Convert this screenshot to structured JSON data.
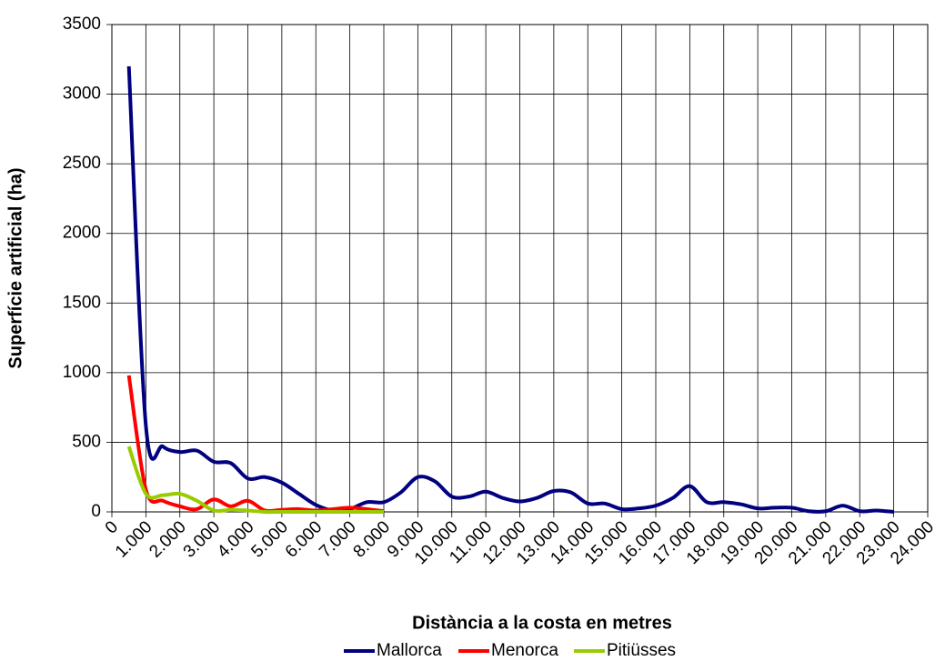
{
  "chart_data": {
    "type": "line",
    "x_label": "Distància a la costa en metres",
    "y_label": "Superfície artificial (ha)",
    "x": [
      500,
      1000,
      1500,
      2000,
      2500,
      3000,
      3500,
      4000,
      4500,
      5000,
      5500,
      6000,
      6500,
      7000,
      7500,
      8000,
      8500,
      9000,
      9500,
      10000,
      10500,
      11000,
      11500,
      12000,
      12500,
      13000,
      13500,
      14000,
      14500,
      15000,
      15500,
      16000,
      16500,
      17000,
      17500,
      18000,
      18500,
      19000,
      19500,
      20000,
      20500,
      21000,
      21500,
      22000,
      22500,
      23000
    ],
    "series": [
      {
        "name": "Mallorca",
        "color": "#000080",
        "values": [
          3200,
          620,
          470,
          430,
          440,
          360,
          350,
          240,
          250,
          210,
          130,
          50,
          10,
          20,
          70,
          70,
          140,
          250,
          220,
          110,
          110,
          145,
          100,
          75,
          100,
          150,
          140,
          60,
          60,
          20,
          25,
          45,
          100,
          185,
          70,
          70,
          55,
          25,
          30,
          30,
          5,
          5,
          45,
          5,
          10,
          0
        ]
      },
      {
        "name": "Menorca",
        "color": "#ff0000",
        "values": [
          980,
          160,
          80,
          40,
          20,
          90,
          40,
          80,
          10,
          15,
          20,
          10,
          20,
          30,
          20,
          5,
          null,
          null,
          null,
          null,
          null,
          null,
          null,
          null,
          null,
          null,
          null,
          null,
          null,
          null,
          null,
          null,
          null,
          null,
          null,
          null,
          null,
          null,
          null,
          null,
          null,
          null,
          null,
          null,
          null,
          null
        ]
      },
      {
        "name": "Pitiüsses",
        "color": "#99cc00",
        "values": [
          470,
          130,
          120,
          130,
          80,
          10,
          15,
          10,
          0,
          0,
          0,
          0,
          0,
          0,
          0,
          0,
          null,
          null,
          null,
          null,
          null,
          null,
          null,
          null,
          null,
          null,
          null,
          null,
          null,
          null,
          null,
          null,
          null,
          null,
          null,
          null,
          null,
          null,
          null,
          null,
          null,
          null,
          null,
          null,
          null,
          null
        ]
      }
    ],
    "xlim": [
      0,
      24000
    ],
    "xticks": [
      0,
      {
        "value": 1000,
        "label": "1.000"
      },
      {
        "value": 2000,
        "label": "2.000"
      },
      {
        "value": 3000,
        "label": "3.000"
      },
      {
        "value": 4000,
        "label": "4.000"
      },
      {
        "value": 5000,
        "label": "5.000"
      },
      {
        "value": 6000,
        "label": "6.000"
      },
      {
        "value": 7000,
        "label": "7.000"
      },
      {
        "value": 8000,
        "label": "8.000"
      },
      {
        "value": 9000,
        "label": "9.000"
      },
      {
        "value": 10000,
        "label": "10.000"
      },
      {
        "value": 11000,
        "label": "11.000"
      },
      {
        "value": 12000,
        "label": "12.000"
      },
      {
        "value": 13000,
        "label": "13.000"
      },
      {
        "value": 14000,
        "label": "14.000"
      },
      {
        "value": 15000,
        "label": "15.000"
      },
      {
        "value": 16000,
        "label": "16.000"
      },
      {
        "value": 17000,
        "label": "17.000"
      },
      {
        "value": 18000,
        "label": "18.000"
      },
      {
        "value": 19000,
        "label": "19.000"
      },
      {
        "value": 20000,
        "label": "20.000"
      },
      {
        "value": 21000,
        "label": "21.000"
      },
      {
        "value": 22000,
        "label": "22.000"
      },
      {
        "value": 23000,
        "label": "23.000"
      },
      {
        "value": 24000,
        "label": "24.000"
      }
    ],
    "ylim": [
      0,
      3500
    ],
    "yticks": [
      0,
      500,
      1000,
      1500,
      2000,
      2500,
      3000,
      3500
    ],
    "grid": true,
    "legend": "bottom"
  }
}
